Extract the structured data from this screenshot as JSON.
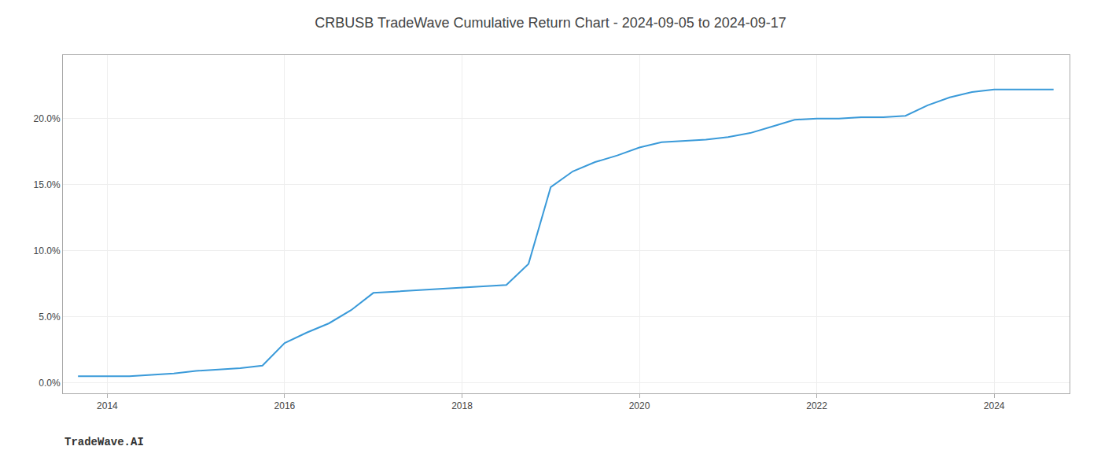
{
  "chart_data": {
    "type": "line",
    "title": "CRBUSB TradeWave Cumulative Return Chart - 2024-09-05 to 2024-09-17",
    "annotations": [
      "TradeWave.AI"
    ],
    "color": "#3a9ad9",
    "x": [
      2013.67,
      2014.0,
      2014.25,
      2014.5,
      2014.75,
      2015.0,
      2015.25,
      2015.5,
      2015.75,
      2016.0,
      2016.25,
      2016.5,
      2016.75,
      2017.0,
      2017.25,
      2017.5,
      2017.75,
      2018.0,
      2018.25,
      2018.5,
      2018.75,
      2019.0,
      2019.25,
      2019.5,
      2019.75,
      2020.0,
      2020.25,
      2020.5,
      2020.75,
      2021.0,
      2021.25,
      2021.5,
      2021.75,
      2022.0,
      2022.25,
      2022.5,
      2022.75,
      2023.0,
      2023.25,
      2023.5,
      2023.75,
      2024.0,
      2024.25,
      2024.5,
      2024.67
    ],
    "values": [
      0.005,
      0.005,
      0.005,
      0.006,
      0.007,
      0.009,
      0.01,
      0.011,
      0.013,
      0.03,
      0.038,
      0.045,
      0.055,
      0.068,
      0.069,
      0.07,
      0.071,
      0.072,
      0.073,
      0.074,
      0.09,
      0.148,
      0.16,
      0.167,
      0.172,
      0.178,
      0.182,
      0.183,
      0.184,
      0.186,
      0.189,
      0.194,
      0.199,
      0.2,
      0.2,
      0.201,
      0.201,
      0.202,
      0.21,
      0.216,
      0.22,
      0.222,
      0.222,
      0.222,
      0.222
    ],
    "xlim": [
      2013.5,
      2024.85
    ],
    "ylim": [
      -0.008,
      0.248
    ],
    "xticks": [
      2014,
      2016,
      2018,
      2020,
      2022,
      2024
    ],
    "yticks": [
      {
        "value": 0.0,
        "label": "0.0%"
      },
      {
        "value": 0.05,
        "label": "5.0%"
      },
      {
        "value": 0.1,
        "label": "10.0%"
      },
      {
        "value": 0.15,
        "label": "15.0%"
      },
      {
        "value": 0.2,
        "label": "20.0%"
      }
    ],
    "grid": true
  }
}
